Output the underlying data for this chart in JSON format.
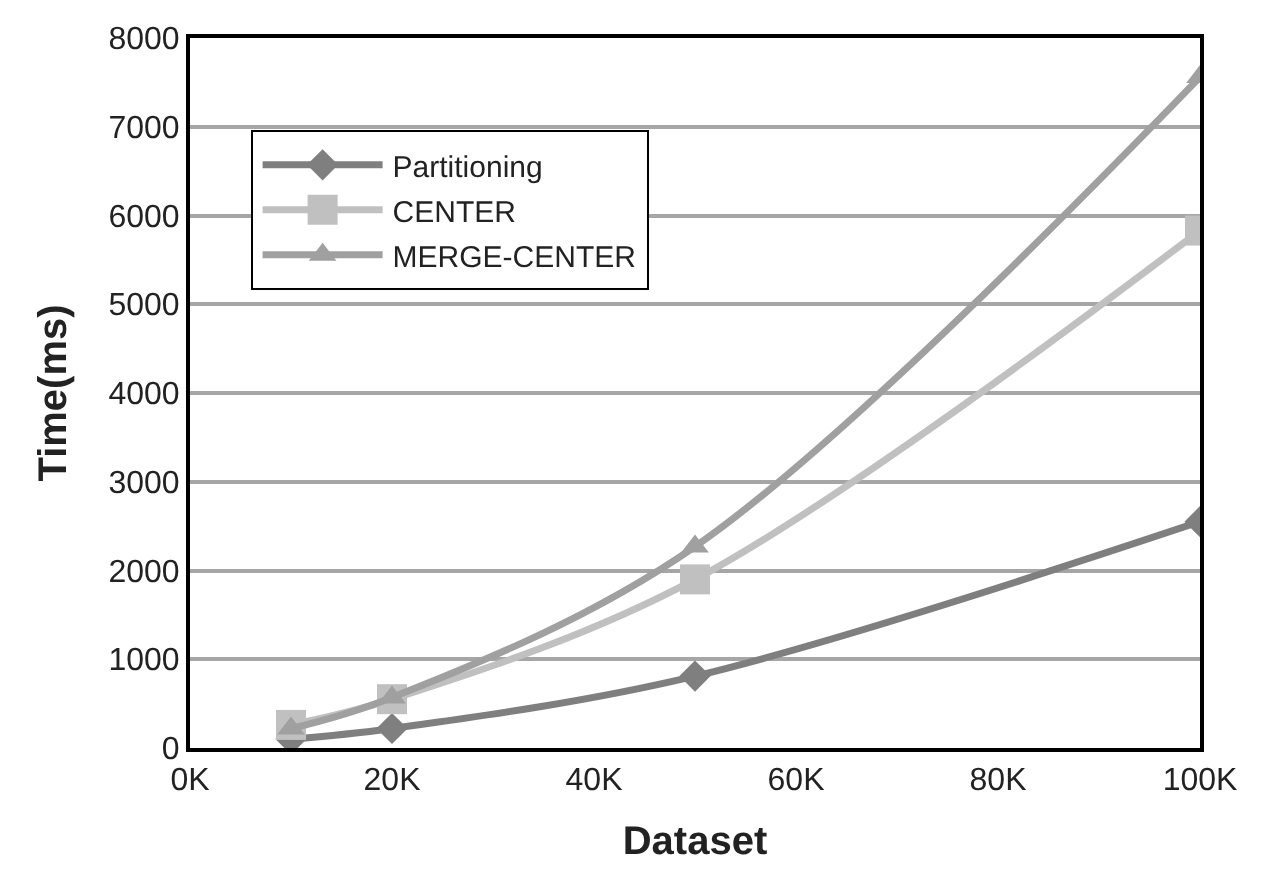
{
  "chart_data": {
    "type": "line",
    "xlabel": "Dataset",
    "ylabel": "Time(ms)",
    "x": [
      10000,
      20000,
      50000,
      100000
    ],
    "series": [
      {
        "name": "Partitioning",
        "color": "#7f7f7f",
        "marker": "diamond",
        "values": [
          100,
          220,
          810,
          2550
        ]
      },
      {
        "name": "CENTER",
        "color": "#c0c0c0",
        "marker": "square",
        "values": [
          260,
          550,
          1900,
          5830
        ]
      },
      {
        "name": "MERGE-CENTER",
        "color": "#a0a0a0",
        "marker": "triangle",
        "values": [
          220,
          570,
          2270,
          7560
        ]
      }
    ],
    "xlim": [
      0,
      100000
    ],
    "xticks": [
      {
        "value": 0,
        "label": "0K"
      },
      {
        "value": 20000,
        "label": "20K"
      },
      {
        "value": 40000,
        "label": "40K"
      },
      {
        "value": 60000,
        "label": "60K"
      },
      {
        "value": 80000,
        "label": "80K"
      },
      {
        "value": 100000,
        "label": "100K"
      }
    ],
    "ylim": [
      0,
      8000
    ],
    "yticks": [
      0,
      1000,
      2000,
      3000,
      4000,
      5000,
      6000,
      7000,
      8000
    ],
    "grid": "y",
    "legend": "top left"
  }
}
